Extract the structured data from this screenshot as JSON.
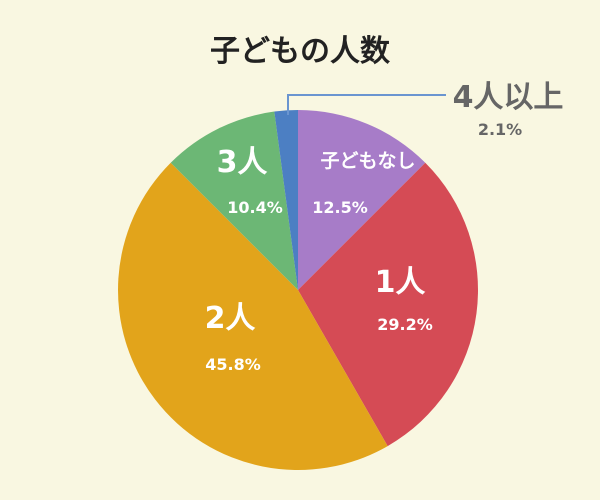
{
  "chart_data": {
    "type": "pie",
    "title": "子どもの人数",
    "start_angle_deg": 0,
    "direction": "clockwise",
    "slices": [
      {
        "label": "子どもなし",
        "percent_text": "12.5%",
        "value": 12.5,
        "color": "#a77cc8"
      },
      {
        "label": "1人",
        "percent_text": "29.2%",
        "value": 29.2,
        "color": "#d54b55"
      },
      {
        "label": "2人",
        "percent_text": "45.8%",
        "value": 45.8,
        "color": "#e2a41b"
      },
      {
        "label": "3人",
        "percent_text": "10.4%",
        "value": 10.4,
        "color": "#6cb775"
      },
      {
        "label": "4人以上",
        "percent_text": "2.1%",
        "value": 2.1,
        "color": "#4c7fc3"
      }
    ]
  }
}
